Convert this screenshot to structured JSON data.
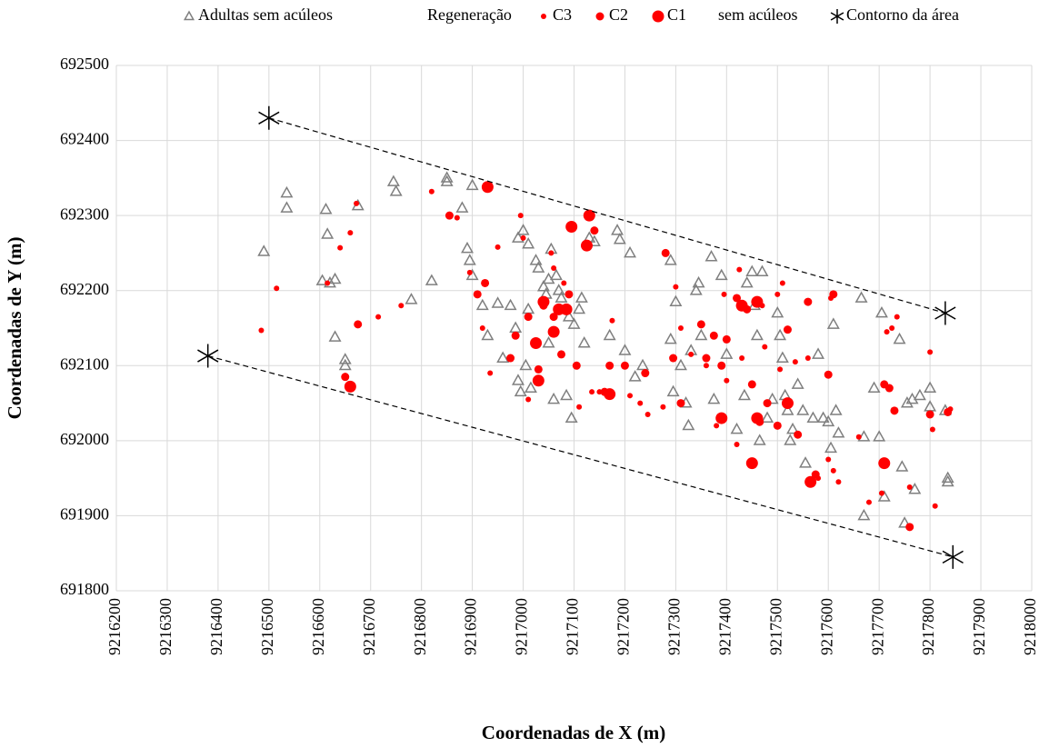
{
  "chart_data": {
    "type": "scatter",
    "x_label": "Coordenadas de X (m)",
    "y_label": "Coordenadas de Y (m)",
    "xlim": [
      9216200,
      9218000
    ],
    "xticks": [
      9216200,
      9216300,
      9216400,
      9216500,
      9216600,
      9216700,
      9216800,
      9216900,
      9217000,
      9217100,
      9217200,
      9217300,
      9217400,
      9217500,
      9217600,
      9217700,
      9217800,
      9217900,
      9218000
    ],
    "ylim": [
      691800,
      692500
    ],
    "yticks": [
      691800,
      691900,
      692000,
      692100,
      692200,
      692300,
      692400,
      692500
    ],
    "grid": true,
    "legend": "top",
    "legend_texts": [
      "Regeneração",
      "sem acúleos"
    ],
    "series": [
      {
        "name": "Adultas sem acúleos",
        "color": "#7f7f7f",
        "marker": "triangle",
        "size": 6,
        "x": [
          9216490,
          9216535,
          9216535,
          9216612,
          9216615,
          9216605,
          9216620,
          9216630,
          9216630,
          9216650,
          9216650,
          9216675,
          9216745,
          9216750,
          9216780,
          9216820,
          9216850,
          9216850,
          9216880,
          9216890,
          9216895,
          9216900,
          9216900,
          9216920,
          9216930,
          9216950,
          9216960,
          9216975,
          9216985,
          9216990,
          9216990,
          9216995,
          9217000,
          9217005,
          9217010,
          9217010,
          9217015,
          9217025,
          9217030,
          9217040,
          9217045,
          9217050,
          9217050,
          9217055,
          9217060,
          9217065,
          9217070,
          9217075,
          9217085,
          9217090,
          9217095,
          9217100,
          9217110,
          9217115,
          9217120,
          9217130,
          9217140,
          9217170,
          9217185,
          9217190,
          9217200,
          9217210,
          9217220,
          9217235,
          9217290,
          9217290,
          9217295,
          9217300,
          9217310,
          9217320,
          9217325,
          9217330,
          9217340,
          9217345,
          9217350,
          9217370,
          9217375,
          9217390,
          9217400,
          9217420,
          9217435,
          9217440,
          9217450,
          9217455,
          9217460,
          9217465,
          9217470,
          9217480,
          9217490,
          9217500,
          9217505,
          9217510,
          9217515,
          9217520,
          9217525,
          9217530,
          9217540,
          9217550,
          9217555,
          9217570,
          9217580,
          9217590,
          9217600,
          9217605,
          9217610,
          9217615,
          9217620,
          9217665,
          9217670,
          9217670,
          9217690,
          9217700,
          9217705,
          9217710,
          9217740,
          9217745,
          9217750,
          9217755,
          9217765,
          9217770,
          9217780,
          9217800,
          9217800,
          9217835,
          9217835,
          9217830
        ],
        "y": [
          692252,
          692330,
          692310,
          692308,
          692275,
          692213,
          692210,
          692215,
          692138,
          692108,
          692100,
          692313,
          692345,
          692332,
          692188,
          692213,
          692350,
          692345,
          692310,
          692256,
          692240,
          692340,
          692220,
          692180,
          692140,
          692183,
          692110,
          692180,
          692150,
          692270,
          692080,
          692065,
          692280,
          692100,
          692262,
          692175,
          692070,
          692240,
          692230,
          692205,
          692195,
          692215,
          692130,
          692255,
          692055,
          692220,
          692200,
          692190,
          692060,
          692165,
          692030,
          692155,
          692175,
          692190,
          692130,
          692270,
          692265,
          692140,
          692280,
          692268,
          692120,
          692250,
          692085,
          692100,
          692240,
          692135,
          692065,
          692185,
          692100,
          692050,
          692020,
          692120,
          692200,
          692210,
          692140,
          692245,
          692055,
          692220,
          692115,
          692015,
          692060,
          692210,
          692225,
          692180,
          692140,
          692000,
          692225,
          692030,
          692055,
          692170,
          692140,
          692110,
          692060,
          692040,
          692000,
          692015,
          692075,
          692040,
          691970,
          692030,
          692115,
          692030,
          692025,
          691990,
          692155,
          692040,
          692010,
          692190,
          692005,
          691900,
          692070,
          692005,
          692170,
          691925,
          692135,
          691965,
          691890,
          692050,
          692055,
          691935,
          692060,
          692070,
          692045,
          691950,
          691945,
          692040
        ]
      },
      {
        "name": "C3",
        "color": "#ff0000",
        "marker": "circle",
        "size": 3,
        "x": [
          9216485,
          9216515,
          9216615,
          9216640,
          9216660,
          9216672,
          9216715,
          9216760,
          9216820,
          9216870,
          9216895,
          9216920,
          9216935,
          9216950,
          9216995,
          9217000,
          9217010,
          9217055,
          9217060,
          9217080,
          9217110,
          9217135,
          9217150,
          9217175,
          9217210,
          9217230,
          9217245,
          9217275,
          9217300,
          9217310,
          9217330,
          9217360,
          9217380,
          9217395,
          9217400,
          9217420,
          9217425,
          9217430,
          9217470,
          9217475,
          9217500,
          9217505,
          9217510,
          9217535,
          9217560,
          9217580,
          9217600,
          9217605,
          9217610,
          9217620,
          9217660,
          9217680,
          9217705,
          9217715,
          9217725,
          9217735,
          9217760,
          9217800,
          9217805,
          9217810,
          9217840
        ],
        "y": [
          692147,
          692203,
          692210,
          692257,
          692277,
          692316,
          692165,
          692180,
          692332,
          692297,
          692224,
          692150,
          692090,
          692258,
          692300,
          692270,
          692055,
          692250,
          692230,
          692210,
          692045,
          692065,
          692065,
          692160,
          692060,
          692050,
          692035,
          692045,
          692205,
          692150,
          692115,
          692100,
          692020,
          692195,
          692080,
          691995,
          692228,
          692110,
          692180,
          692125,
          692195,
          692095,
          692210,
          692105,
          692110,
          691950,
          691975,
          692190,
          691960,
          691945,
          692005,
          691918,
          691930,
          692145,
          692150,
          692165,
          691938,
          692118,
          692015,
          691913,
          692042
        ]
      },
      {
        "name": "C2",
        "color": "#ff0000",
        "marker": "circle",
        "size": 4.5,
        "x": [
          9216675,
          9216650,
          9216855,
          9216910,
          9216925,
          9216975,
          9216985,
          9217010,
          9217030,
          9217040,
          9217060,
          9217075,
          9217090,
          9217105,
          9217140,
          9217160,
          9217170,
          9217200,
          9217240,
          9217280,
          9217295,
          9217310,
          9217350,
          9217360,
          9217375,
          9217390,
          9217400,
          9217420,
          9217440,
          9217450,
          9217465,
          9217480,
          9217500,
          9217520,
          9217540,
          9217560,
          9217575,
          9217600,
          9217610,
          9217710,
          9217720,
          9217730,
          9217760,
          9217800,
          9217835
        ],
        "y": [
          692155,
          692085,
          692300,
          692195,
          692210,
          692110,
          692140,
          692165,
          692095,
          692180,
          692165,
          692115,
          692195,
          692100,
          692280,
          692065,
          692100,
          692100,
          692090,
          692250,
          692110,
          692050,
          692155,
          692110,
          692140,
          692100,
          692135,
          692190,
          692175,
          692075,
          692025,
          692050,
          692020,
          692148,
          692008,
          692185,
          691955,
          692088,
          692195,
          692075,
          692070,
          692040,
          691885,
          692035,
          692038
        ]
      },
      {
        "name": "C1",
        "color": "#ff0000",
        "marker": "circle",
        "size": 6.5,
        "x": [
          9216660,
          9216930,
          9217025,
          9217030,
          9217040,
          9217060,
          9217070,
          9217085,
          9217095,
          9217125,
          9217130,
          9217170,
          9217390,
          9217430,
          9217460,
          9217450,
          9217460,
          9217520,
          9217565,
          9217710
        ],
        "y": [
          692072,
          692338,
          692130,
          692080,
          692185,
          692145,
          692175,
          692175,
          692285,
          692260,
          692300,
          692062,
          692030,
          692180,
          692185,
          691970,
          692030,
          692050,
          691945,
          691970
        ]
      },
      {
        "name": "Contorno da área",
        "color": "#000000",
        "marker": "asterisk",
        "size": 13,
        "line": "dashed",
        "x": [
          9216500,
          9217830,
          null,
          9216380,
          9217845
        ],
        "y": [
          692430,
          692170,
          null,
          692113,
          691845
        ]
      }
    ]
  }
}
